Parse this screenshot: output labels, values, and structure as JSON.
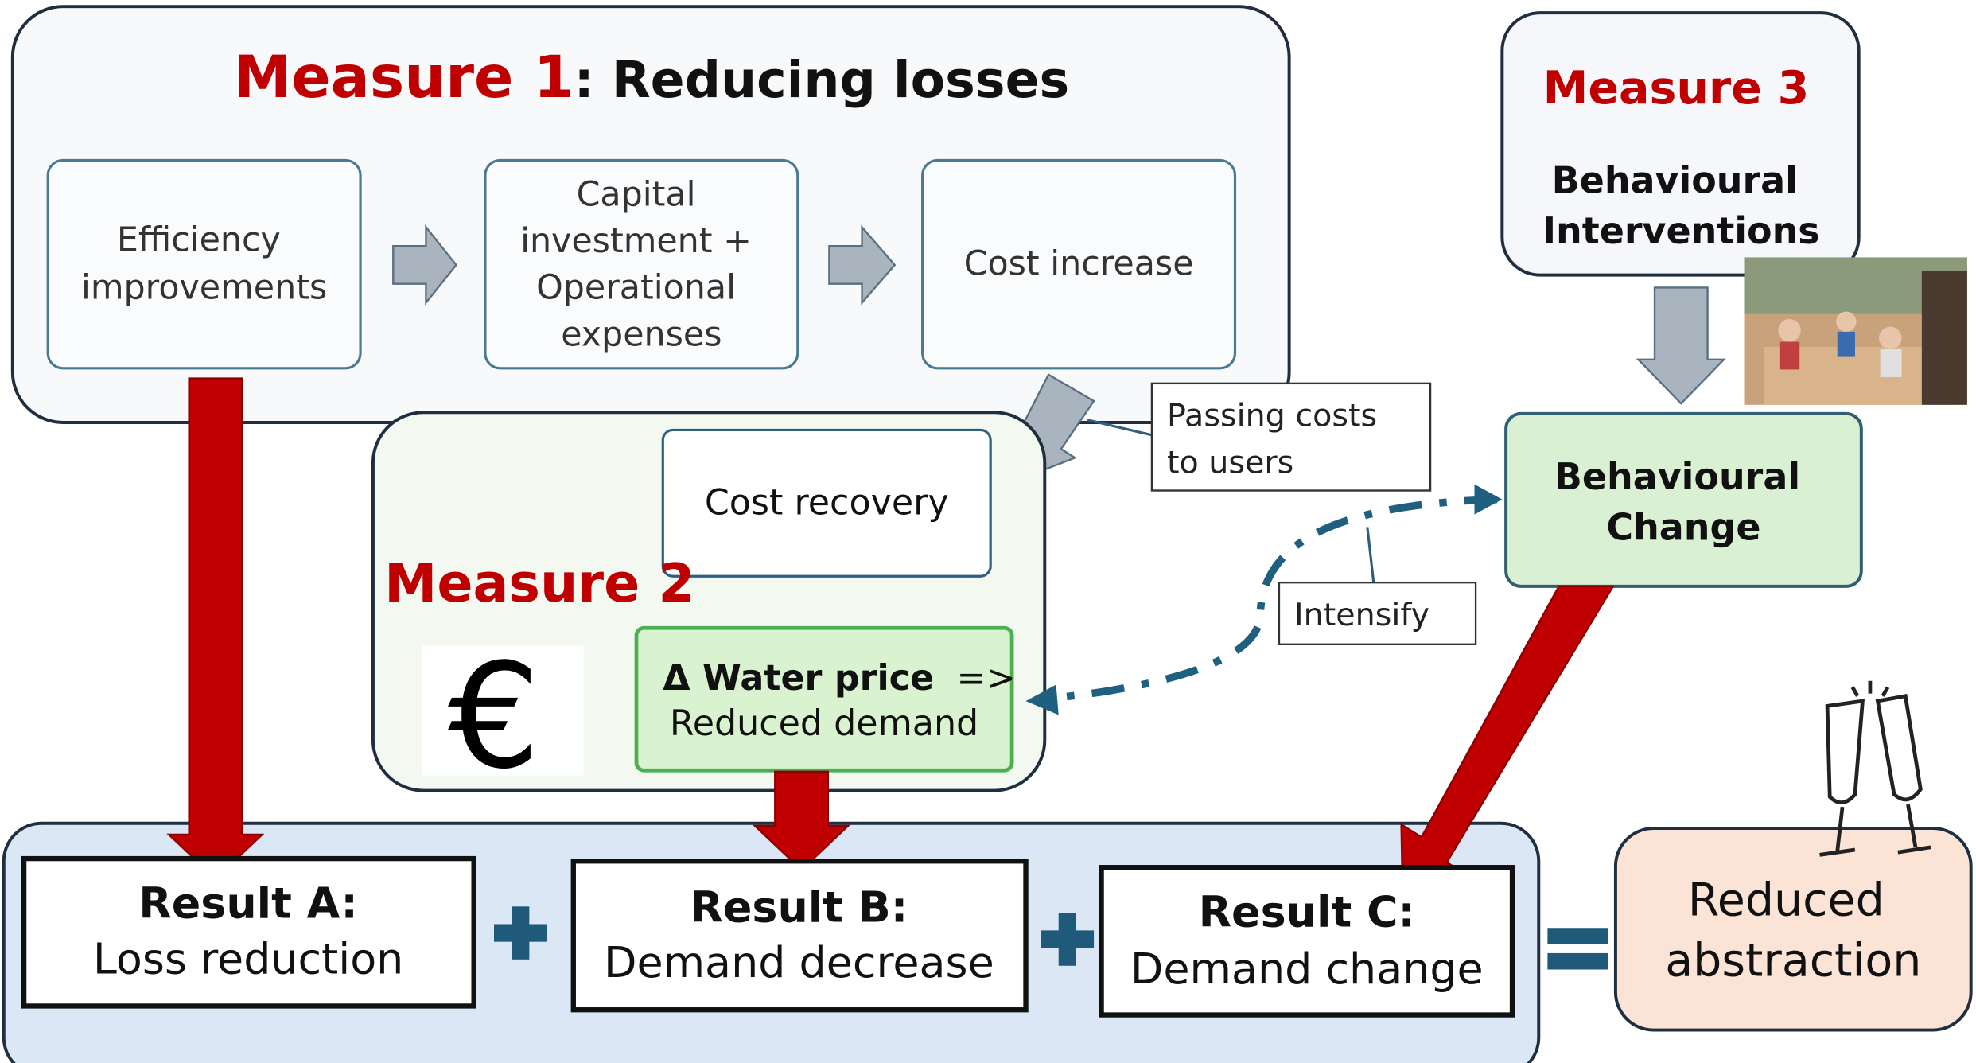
{
  "measure1": {
    "title": "Measure 1",
    "subtitle": ": Reducing losses",
    "steps": [
      {
        "lines": [
          "Efficiency",
          "improvements"
        ]
      },
      {
        "lines": [
          "Capital",
          "investment +",
          "Operational",
          "expenses"
        ]
      },
      {
        "lines": [
          "Cost increase"
        ]
      }
    ]
  },
  "passing_costs": {
    "lines": [
      "Passing costs",
      "to users"
    ]
  },
  "measure2": {
    "title": "Measure 2",
    "cost_recovery": "Cost recovery",
    "currency": "€",
    "price": {
      "bold": "Δ Water price",
      "arrow": "=>",
      "line2": "Reduced demand"
    }
  },
  "measure3": {
    "title": "Measure 3",
    "lines": [
      "Behavioural",
      "Interventions"
    ],
    "change": {
      "lines": [
        "Behavioural",
        "Change"
      ]
    }
  },
  "intensify": "Intensify",
  "results": [
    {
      "title": "Result A:",
      "text": "Loss reduction"
    },
    {
      "title": "Result B:",
      "text": "Demand decrease"
    },
    {
      "title": "Result C:",
      "text": "Demand change"
    }
  ],
  "outcome": {
    "lines": [
      "Reduced",
      "abstraction"
    ]
  }
}
